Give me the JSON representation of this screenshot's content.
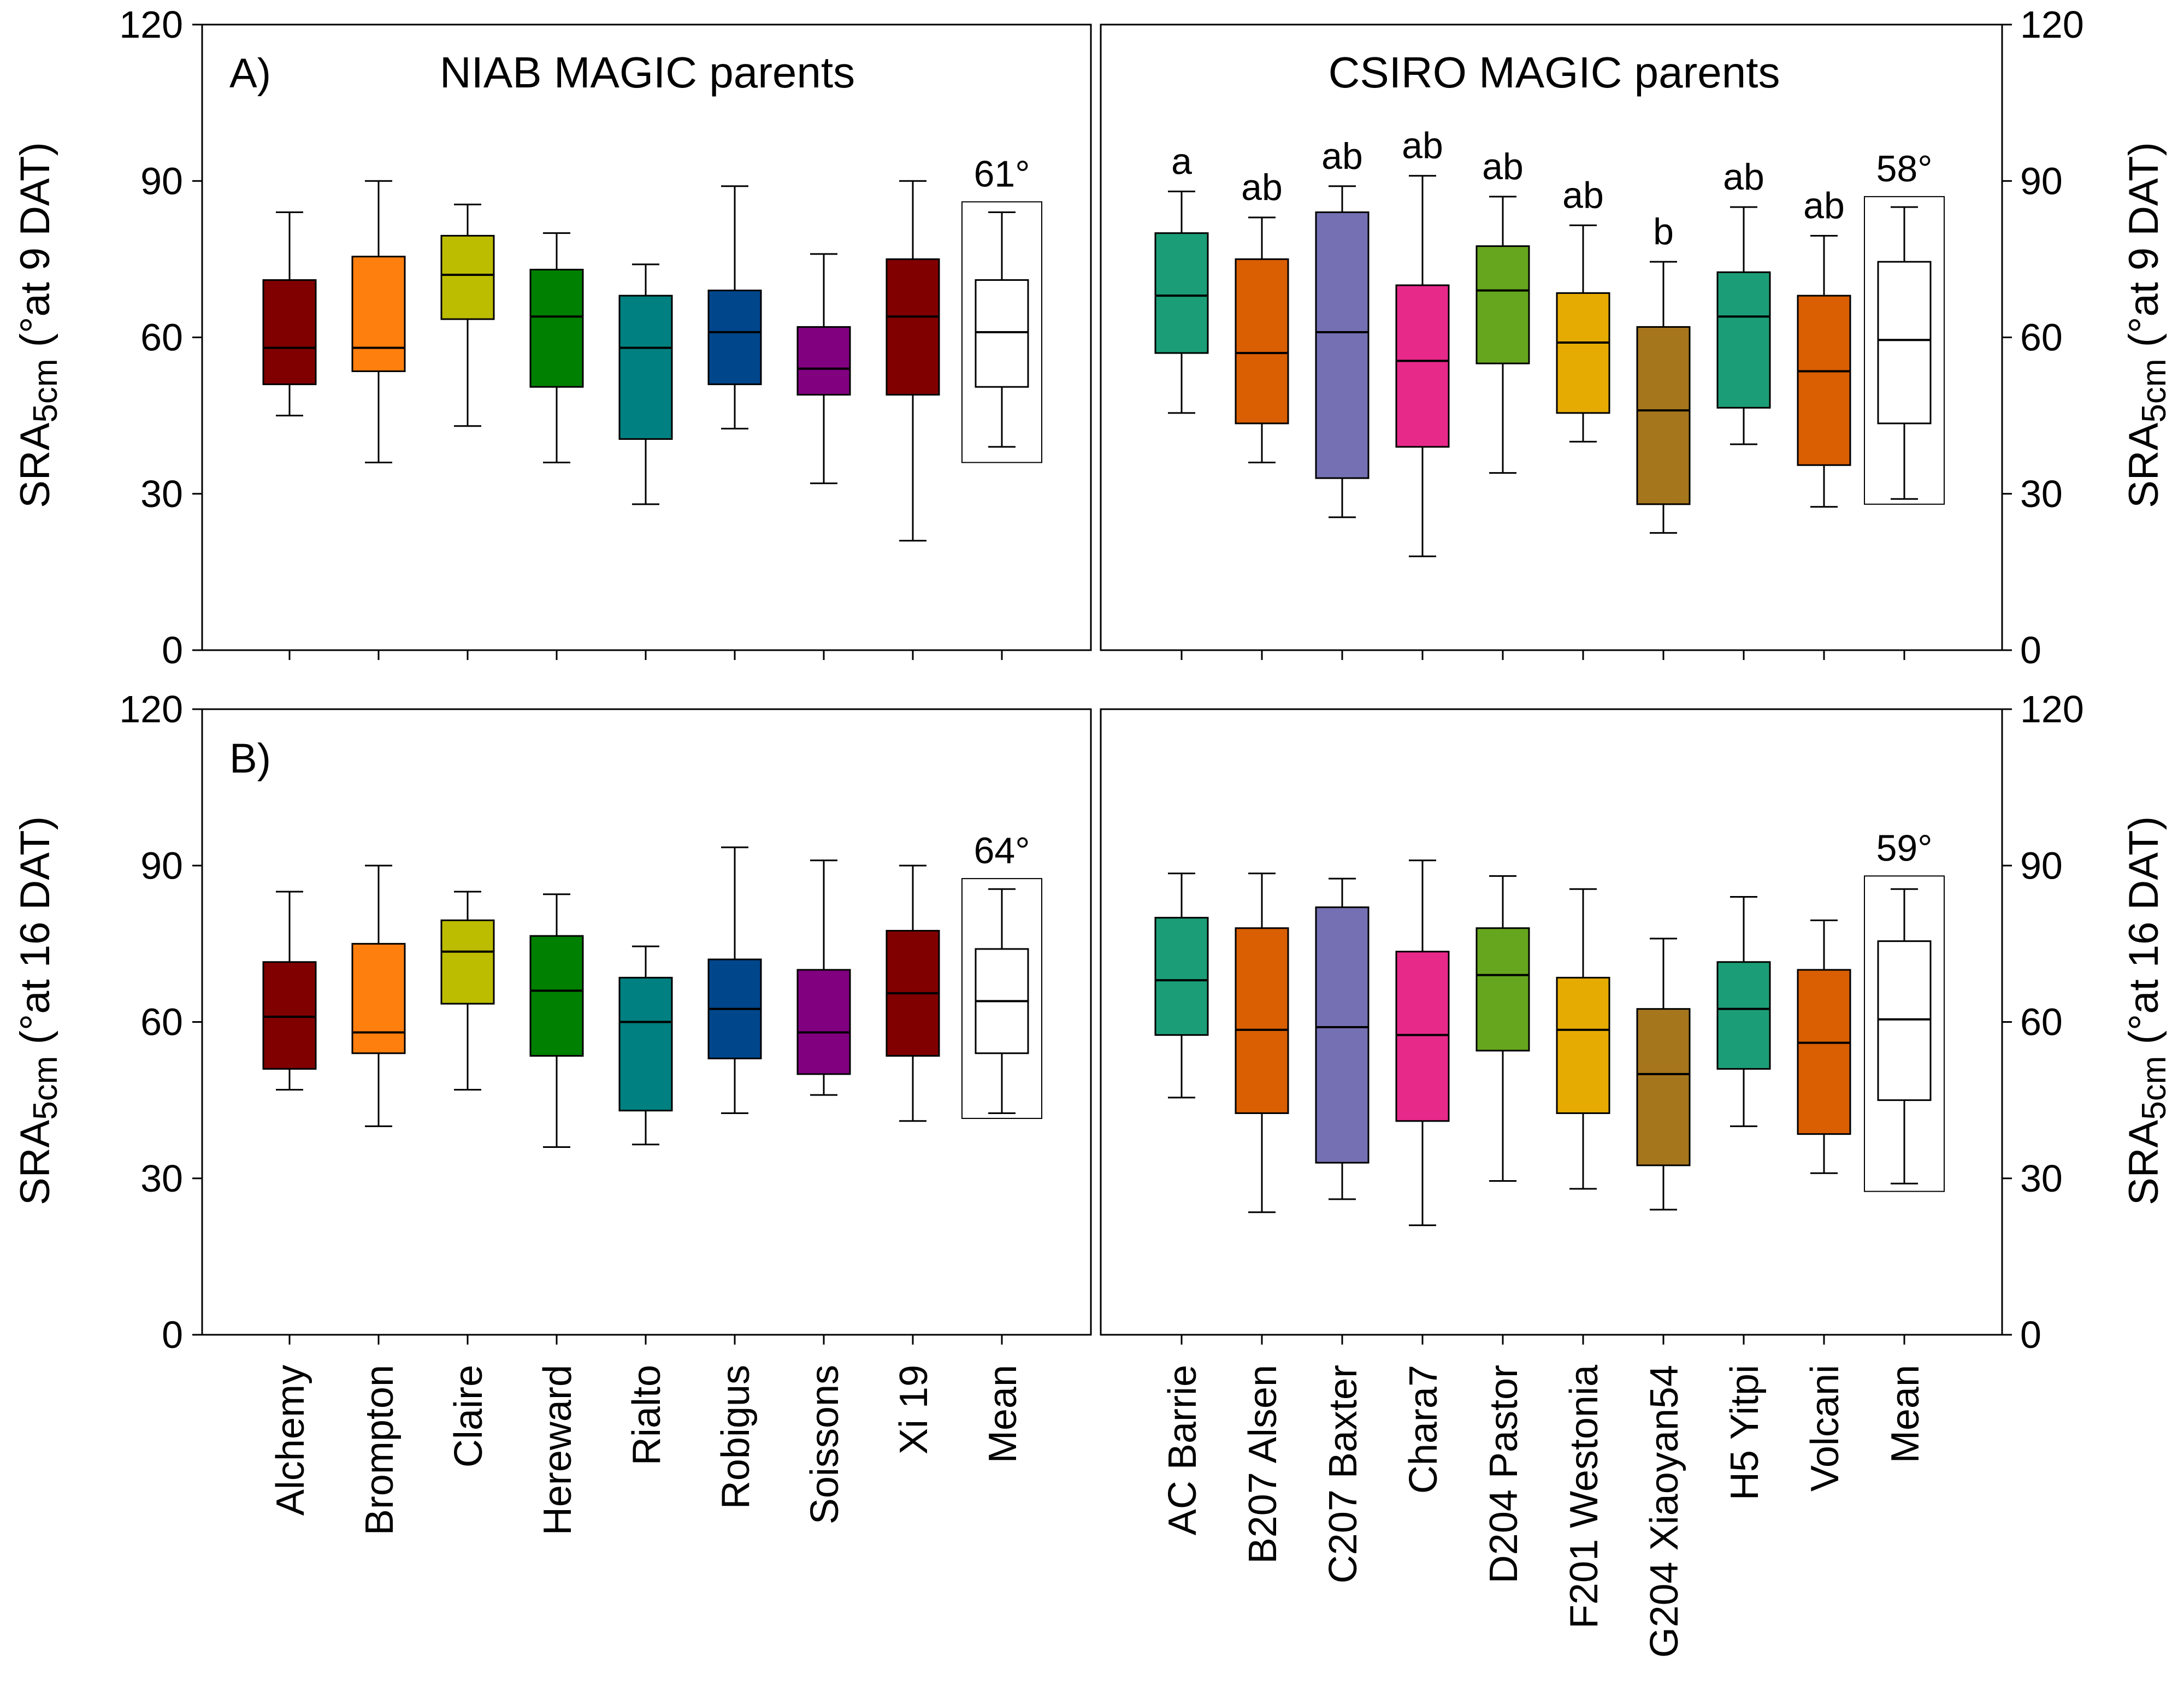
{
  "figure": {
    "ylabel_left": {
      "A": {
        "prefix": "SRA",
        "sub": "5cm",
        "suffix": " (°at 9 DAT)"
      },
      "B": {
        "prefix": "SRA",
        "sub": "5cm",
        "suffix": " (°at 16 DAT)"
      }
    },
    "ylabel_right": {
      "A": {
        "prefix": "SRA",
        "sub": "5cm",
        "suffix": " (°at 9 DAT)"
      },
      "B": {
        "prefix": "SRA",
        "sub": "5cm",
        "suffix": " (°at 16 DAT)"
      }
    },
    "panel_labels": {
      "A": "A)",
      "B": "B)"
    },
    "group_titles": {
      "niab": "NIAB MAGIC parents",
      "csiro": "CSIRO MAGIC parents"
    }
  },
  "chart_data": [
    {
      "type": "box",
      "id": "A-niab",
      "panel": "A",
      "title": "NIAB MAGIC parents",
      "ylabel": "SRA5cm (°at 9 DAT)",
      "ylim": [
        0,
        120
      ],
      "yticks": [
        0,
        30,
        60,
        90,
        120
      ],
      "categories": [
        "Alchemy",
        "Brompton",
        "Claire",
        "Hereward",
        "Rialto",
        "Robigus",
        "Soissons",
        "Xi 19",
        "Mean"
      ],
      "colors": [
        "#800000",
        "#ff7f0e",
        "#bcbc00",
        "#008000",
        "#008080",
        "#00468b",
        "#800080",
        "#800000",
        "#ffffff"
      ],
      "boxes": [
        {
          "min": 45,
          "q1": 51,
          "median": 58,
          "q3": 71,
          "max": 84
        },
        {
          "min": 36,
          "q1": 53.5,
          "median": 58,
          "q3": 75.5,
          "max": 90
        },
        {
          "min": 43,
          "q1": 63.5,
          "median": 72,
          "q3": 79.5,
          "max": 85.5
        },
        {
          "min": 36,
          "q1": 50.5,
          "median": 64,
          "q3": 73,
          "max": 80
        },
        {
          "min": 28,
          "q1": 40.5,
          "median": 58,
          "q3": 68,
          "max": 74
        },
        {
          "min": 42.5,
          "q1": 51,
          "median": 61,
          "q3": 69,
          "max": 89
        },
        {
          "min": 32,
          "q1": 49,
          "median": 54,
          "q3": 62,
          "max": 76
        },
        {
          "min": 21,
          "q1": 49,
          "median": 64,
          "q3": 75,
          "max": 90
        },
        {
          "min": 39,
          "q1": 50.5,
          "median": 61,
          "q3": 71,
          "max": 84
        }
      ],
      "mean_frame": [
        36,
        86
      ],
      "mean_label": "61°"
    },
    {
      "type": "box",
      "id": "A-csiro",
      "panel": "A",
      "title": "CSIRO MAGIC parents",
      "ylabel": "SRA5cm (°at 9 DAT)",
      "ylim": [
        0,
        120
      ],
      "yticks": [
        0,
        30,
        60,
        90,
        120
      ],
      "categories": [
        "AC Barrie",
        "B207 Alsen",
        "C207 Baxter",
        "Chara7",
        "D204 Pastor",
        "F201 Westonia",
        "G204 Xiaoyan54",
        "H5 Yitpi",
        "Volcani",
        "Mean"
      ],
      "colors": [
        "#1b9e77",
        "#d95f02",
        "#7570b3",
        "#e7298a",
        "#66a61e",
        "#e6ab02",
        "#a6761d",
        "#1b9e77",
        "#d95f02",
        "#ffffff"
      ],
      "boxes": [
        {
          "min": 45.5,
          "q1": 57,
          "median": 68,
          "q3": 80,
          "max": 88
        },
        {
          "min": 36,
          "q1": 43.5,
          "median": 57,
          "q3": 75,
          "max": 83
        },
        {
          "min": 25.5,
          "q1": 33,
          "median": 61,
          "q3": 84,
          "max": 89
        },
        {
          "min": 18,
          "q1": 39,
          "median": 55.5,
          "q3": 70,
          "max": 91
        },
        {
          "min": 34,
          "q1": 55,
          "median": 69,
          "q3": 77.5,
          "max": 87
        },
        {
          "min": 40,
          "q1": 45.5,
          "median": 59,
          "q3": 68.5,
          "max": 81.5
        },
        {
          "min": 22.5,
          "q1": 28,
          "median": 46,
          "q3": 62,
          "max": 74.5
        },
        {
          "min": 39.5,
          "q1": 46.5,
          "median": 64,
          "q3": 72.5,
          "max": 85
        },
        {
          "min": 27.5,
          "q1": 35.5,
          "median": 53.5,
          "q3": 68,
          "max": 79.5
        },
        {
          "min": 29,
          "q1": 43.5,
          "median": 59.5,
          "q3": 74.5,
          "max": 85
        }
      ],
      "letters": [
        "a",
        "ab",
        "ab",
        "ab",
        "ab",
        "ab",
        "b",
        "ab",
        "ab",
        ""
      ],
      "mean_frame": [
        28,
        87
      ],
      "mean_label": "58°"
    },
    {
      "type": "box",
      "id": "B-niab",
      "panel": "B",
      "title": "",
      "ylabel": "SRA5cm (°at 16 DAT)",
      "ylim": [
        0,
        120
      ],
      "yticks": [
        0,
        30,
        60,
        90,
        120
      ],
      "categories": [
        "Alchemy",
        "Brompton",
        "Claire",
        "Hereward",
        "Rialto",
        "Robigus",
        "Soissons",
        "Xi 19",
        "Mean"
      ],
      "colors": [
        "#800000",
        "#ff7f0e",
        "#bcbc00",
        "#008000",
        "#008080",
        "#00468b",
        "#800080",
        "#800000",
        "#ffffff"
      ],
      "boxes": [
        {
          "min": 47,
          "q1": 51,
          "median": 61,
          "q3": 71.5,
          "max": 85
        },
        {
          "min": 40,
          "q1": 54,
          "median": 58,
          "q3": 75,
          "max": 90
        },
        {
          "min": 47,
          "q1": 63.5,
          "median": 73.5,
          "q3": 79.5,
          "max": 85
        },
        {
          "min": 36,
          "q1": 53.5,
          "median": 66,
          "q3": 76.5,
          "max": 84.5
        },
        {
          "min": 36.5,
          "q1": 43,
          "median": 60,
          "q3": 68.5,
          "max": 74.5
        },
        {
          "min": 42.5,
          "q1": 53,
          "median": 62.5,
          "q3": 72,
          "max": 93.5
        },
        {
          "min": 46,
          "q1": 50,
          "median": 58,
          "q3": 70,
          "max": 91
        },
        {
          "min": 41,
          "q1": 53.5,
          "median": 65.5,
          "q3": 77.5,
          "max": 90
        },
        {
          "min": 42.5,
          "q1": 54,
          "median": 64,
          "q3": 74,
          "max": 85.5
        }
      ],
      "mean_frame": [
        41.5,
        87.5
      ],
      "mean_label": "64°"
    },
    {
      "type": "box",
      "id": "B-csiro",
      "panel": "B",
      "title": "",
      "ylabel": "SRA5cm (°at 16 DAT)",
      "ylim": [
        0,
        120
      ],
      "yticks": [
        0,
        30,
        60,
        90,
        120
      ],
      "categories": [
        "AC Barrie",
        "B207 Alsen",
        "C207 Baxter",
        "Chara7",
        "D204 Pastor",
        "F201 Westonia",
        "G204 Xiaoyan54",
        "H5 Yitpi",
        "Volcani",
        "Mean"
      ],
      "colors": [
        "#1b9e77",
        "#d95f02",
        "#7570b3",
        "#e7298a",
        "#66a61e",
        "#e6ab02",
        "#a6761d",
        "#1b9e77",
        "#d95f02",
        "#ffffff"
      ],
      "boxes": [
        {
          "min": 45.5,
          "q1": 57.5,
          "median": 68,
          "q3": 80,
          "max": 88.5
        },
        {
          "min": 23.5,
          "q1": 42.5,
          "median": 58.5,
          "q3": 78,
          "max": 88.5
        },
        {
          "min": 26,
          "q1": 33,
          "median": 59,
          "q3": 82,
          "max": 87.5
        },
        {
          "min": 21,
          "q1": 41,
          "median": 57.5,
          "q3": 73.5,
          "max": 91
        },
        {
          "min": 29.5,
          "q1": 54.5,
          "median": 69,
          "q3": 78,
          "max": 88
        },
        {
          "min": 28,
          "q1": 42.5,
          "median": 58.5,
          "q3": 68.5,
          "max": 85.5
        },
        {
          "min": 24,
          "q1": 32.5,
          "median": 50,
          "q3": 62.5,
          "max": 76
        },
        {
          "min": 40,
          "q1": 51,
          "median": 62.5,
          "q3": 71.5,
          "max": 84
        },
        {
          "min": 31,
          "q1": 38.5,
          "median": 56,
          "q3": 70,
          "max": 79.5
        },
        {
          "min": 29,
          "q1": 45,
          "median": 60.5,
          "q3": 75.5,
          "max": 85.5
        }
      ],
      "mean_frame": [
        27.5,
        88
      ],
      "mean_label": "59°"
    }
  ]
}
